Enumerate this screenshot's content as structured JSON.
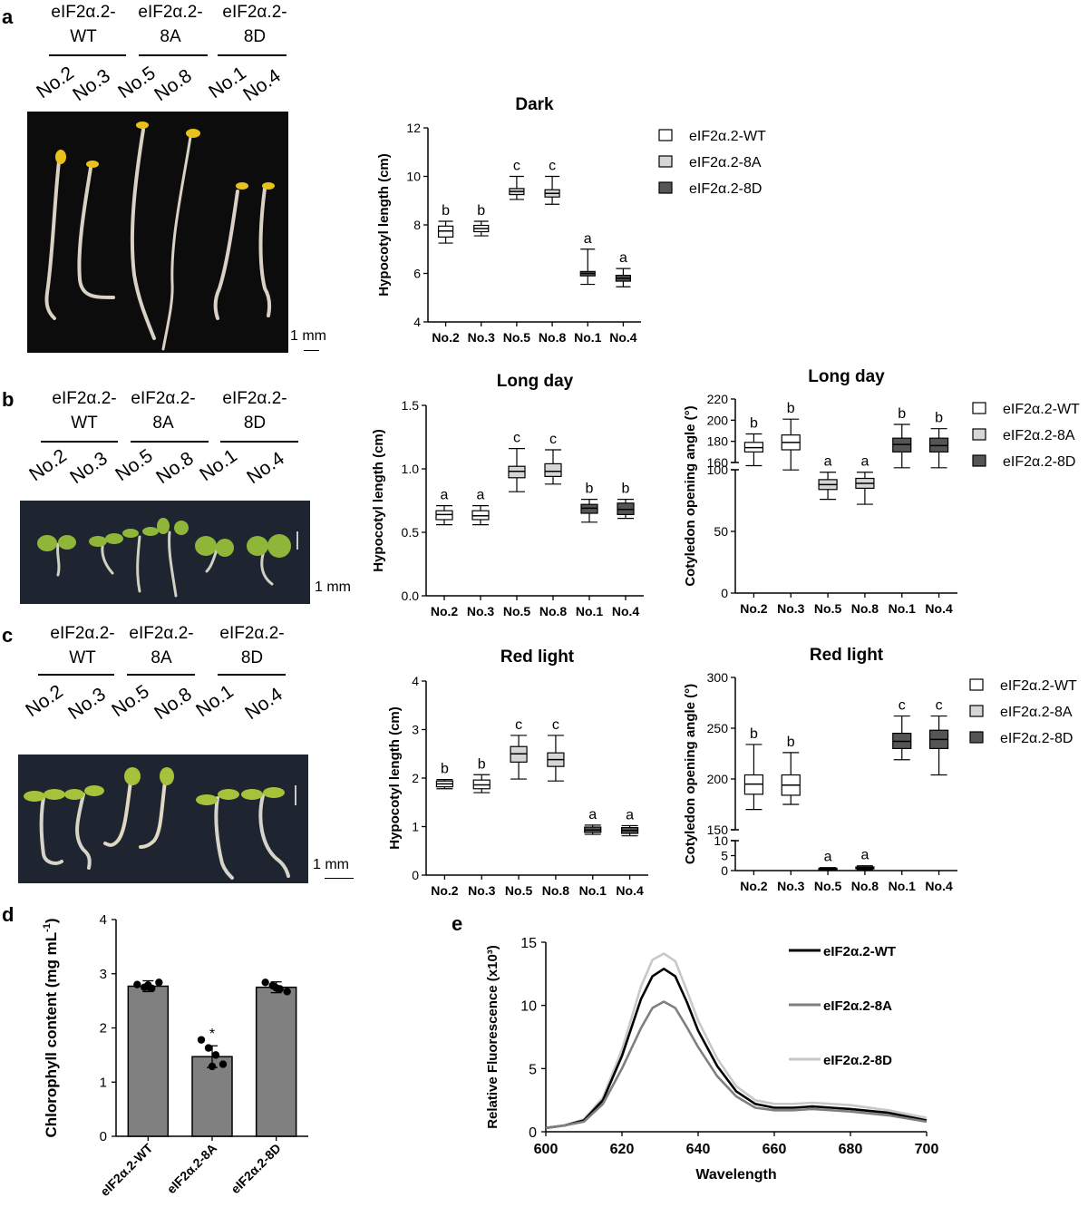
{
  "panels": {
    "a": {
      "letter": "a",
      "genotypes": [
        {
          "line1": "eIF2α.2-",
          "line2": "WT"
        },
        {
          "line1": "eIF2α.2-",
          "line2": "8A"
        },
        {
          "line1": "eIF2α.2-",
          "line2": "8D"
        }
      ],
      "lines": [
        "No.2",
        "No.3",
        "No.5",
        "No.8",
        "No.1",
        "No.4"
      ],
      "scale": "1 mm"
    },
    "b": {
      "letter": "b",
      "genotypes": [
        {
          "line1": "eIF2α.2-",
          "line2": "WT"
        },
        {
          "line1": "eIF2α.2-",
          "line2": "8A"
        },
        {
          "line1": "eIF2α.2-",
          "line2": "8D"
        }
      ],
      "lines": [
        "No.2",
        "No.3",
        "No.5",
        "No.8",
        "No.1",
        "No.4"
      ],
      "scale": "1 mm"
    },
    "c": {
      "letter": "c",
      "genotypes": [
        {
          "line1": "eIF2α.2-",
          "line2": "WT"
        },
        {
          "line1": "eIF2α.2-",
          "line2": "8A"
        },
        {
          "line1": "eIF2α.2-",
          "line2": "8D"
        }
      ],
      "lines": [
        "No.2",
        "No.3",
        "No.5",
        "No.8",
        "No.1",
        "No.4"
      ],
      "scale": "1 mm"
    },
    "d": {
      "letter": "d"
    },
    "e": {
      "letter": "e"
    }
  },
  "colors": {
    "wt": "#ffffff",
    "a8": "#d6d6d6",
    "d8": "#555555",
    "bar": "#808080",
    "line_wt": "#000000",
    "line_8a": "#7f7f7f",
    "line_8d": "#c8c8c8",
    "photo_bg": "#0c0c0c",
    "photo_bg2": "#1e2530"
  },
  "chart_data": [
    {
      "id": "a_dark",
      "type": "box",
      "title": "Dark",
      "ylabel": "Hypocotyl length (cm)",
      "ylim": [
        4,
        12
      ],
      "yticks": [
        4,
        6,
        8,
        10,
        12
      ],
      "categories": [
        "No.2",
        "No.3",
        "No.5",
        "No.8",
        "No.1",
        "No.4"
      ],
      "groups": [
        "wt",
        "wt",
        "8a",
        "8a",
        "8d",
        "8d"
      ],
      "legend": [
        "eIF2α.2-WT",
        "eIF2α.2-8A",
        "eIF2α.2-8D"
      ],
      "legend_position": "right",
      "boxes": [
        {
          "min": 7.25,
          "q1": 7.5,
          "median": 7.75,
          "q3": 7.95,
          "max": 8.15,
          "letter": "b"
        },
        {
          "min": 7.55,
          "q1": 7.72,
          "median": 7.85,
          "q3": 7.98,
          "max": 8.15,
          "letter": "b"
        },
        {
          "min": 9.05,
          "q1": 9.25,
          "median": 9.38,
          "q3": 9.5,
          "max": 10.0,
          "letter": "c"
        },
        {
          "min": 8.85,
          "q1": 9.15,
          "median": 9.3,
          "q3": 9.45,
          "max": 10.0,
          "letter": "c"
        },
        {
          "min": 5.55,
          "q1": 5.9,
          "median": 6.0,
          "q3": 6.08,
          "max": 7.0,
          "letter": "a"
        },
        {
          "min": 5.45,
          "q1": 5.68,
          "median": 5.8,
          "q3": 5.92,
          "max": 6.2,
          "letter": "a"
        }
      ]
    },
    {
      "id": "b_hyp",
      "type": "box",
      "title": "Long day",
      "ylabel": "Hypocotyl length (cm)",
      "ylim": [
        0,
        1.5
      ],
      "yticks": [
        0.0,
        0.5,
        1.0,
        1.5
      ],
      "ytick_labels": [
        "0.0",
        "0.5",
        "1.0",
        "1.5"
      ],
      "categories": [
        "No.2",
        "No.3",
        "No.5",
        "No.8",
        "No.1",
        "No.4"
      ],
      "groups": [
        "wt",
        "wt",
        "8a",
        "8a",
        "8d",
        "8d"
      ],
      "boxes": [
        {
          "min": 0.56,
          "q1": 0.6,
          "median": 0.64,
          "q3": 0.67,
          "max": 0.71,
          "letter": "a"
        },
        {
          "min": 0.56,
          "q1": 0.6,
          "median": 0.63,
          "q3": 0.67,
          "max": 0.71,
          "letter": "a"
        },
        {
          "min": 0.82,
          "q1": 0.93,
          "median": 0.98,
          "q3": 1.02,
          "max": 1.16,
          "letter": "c"
        },
        {
          "min": 0.88,
          "q1": 0.94,
          "median": 0.98,
          "q3": 1.04,
          "max": 1.15,
          "letter": "c"
        },
        {
          "min": 0.58,
          "q1": 0.65,
          "median": 0.69,
          "q3": 0.72,
          "max": 0.76,
          "letter": "b"
        },
        {
          "min": 0.61,
          "q1": 0.64,
          "median": 0.68,
          "q3": 0.73,
          "max": 0.76,
          "letter": "b"
        }
      ]
    },
    {
      "id": "b_coty",
      "type": "box",
      "title": "Long day",
      "ylabel": "Cotyledon opening angle (°)",
      "axis_break": true,
      "ylim_lower": [
        0,
        100
      ],
      "yticks_lower": [
        0,
        50,
        100
      ],
      "ylim_upper": [
        160,
        220
      ],
      "yticks_upper": [
        160,
        180,
        200,
        220
      ],
      "categories": [
        "No.2",
        "No.3",
        "No.5",
        "No.8",
        "No.1",
        "No.4"
      ],
      "groups": [
        "wt",
        "wt",
        "8a",
        "8a",
        "8d",
        "8d"
      ],
      "legend": [
        "eIF2α.2-WT",
        "eIF2α.2-8A",
        "eIF2α.2-8D"
      ],
      "legend_position": "right",
      "boxes": [
        {
          "min": 157,
          "q1": 170,
          "median": 174,
          "q3": 179,
          "max": 187,
          "letter": "b"
        },
        {
          "min": 153,
          "q1": 172,
          "median": 179,
          "q3": 186,
          "max": 201,
          "letter": "b"
        },
        {
          "min": 76,
          "q1": 84,
          "median": 88,
          "q3": 92,
          "max": 98,
          "letter": "a"
        },
        {
          "min": 72,
          "q1": 85,
          "median": 89,
          "q3": 93,
          "max": 98,
          "letter": "a"
        },
        {
          "min": 155,
          "q1": 170,
          "median": 177,
          "q3": 183,
          "max": 196,
          "letter": "b"
        },
        {
          "min": 155,
          "q1": 170,
          "median": 176,
          "q3": 183,
          "max": 192,
          "letter": "b"
        }
      ]
    },
    {
      "id": "c_hyp",
      "type": "box",
      "title": "Red light",
      "ylabel": "Hypocotyl length (cm)",
      "ylim": [
        0,
        4
      ],
      "yticks": [
        0,
        1,
        2,
        3,
        4
      ],
      "categories": [
        "No.2",
        "No.3",
        "No.5",
        "No.8",
        "No.1",
        "No.4"
      ],
      "groups": [
        "wt",
        "wt",
        "8a",
        "8a",
        "8d",
        "8d"
      ],
      "boxes": [
        {
          "min": 1.78,
          "q1": 1.82,
          "median": 1.88,
          "q3": 1.94,
          "max": 1.97,
          "letter": "b"
        },
        {
          "min": 1.7,
          "q1": 1.78,
          "median": 1.86,
          "q3": 1.96,
          "max": 2.07,
          "letter": "b"
        },
        {
          "min": 1.98,
          "q1": 2.33,
          "median": 2.5,
          "q3": 2.65,
          "max": 2.88,
          "letter": "c"
        },
        {
          "min": 1.94,
          "q1": 2.24,
          "median": 2.38,
          "q3": 2.52,
          "max": 2.88,
          "letter": "c"
        },
        {
          "min": 0.84,
          "q1": 0.88,
          "median": 0.93,
          "q3": 0.99,
          "max": 1.03,
          "letter": "a"
        },
        {
          "min": 0.81,
          "q1": 0.86,
          "median": 0.92,
          "q3": 0.98,
          "max": 1.02,
          "letter": "a"
        }
      ]
    },
    {
      "id": "c_coty",
      "type": "box",
      "title": "Red light",
      "ylabel": "Cotyledon opening angle (°)",
      "axis_break": true,
      "ylim_lower": [
        0,
        10
      ],
      "yticks_lower": [
        0,
        5,
        10
      ],
      "ylim_upper": [
        150,
        300
      ],
      "yticks_upper": [
        150,
        200,
        250,
        300
      ],
      "categories": [
        "No.2",
        "No.3",
        "No.5",
        "No.8",
        "No.1",
        "No.4"
      ],
      "groups": [
        "wt",
        "wt",
        "8a",
        "8a",
        "8d",
        "8d"
      ],
      "legend": [
        "eIF2α.2-WT",
        "eIF2α.2-8A",
        "eIF2α.2-8D"
      ],
      "legend_position": "right",
      "boxes": [
        {
          "min": 170,
          "q1": 185,
          "median": 195,
          "q3": 204,
          "max": 234,
          "letter": "b"
        },
        {
          "min": 175,
          "q1": 184,
          "median": 194,
          "q3": 204,
          "max": 226,
          "letter": "b"
        },
        {
          "min": 0.2,
          "q1": 0.4,
          "median": 0.6,
          "q3": 0.8,
          "max": 1.0,
          "letter": "a"
        },
        {
          "min": 0.3,
          "q1": 0.6,
          "median": 0.9,
          "q3": 1.2,
          "max": 1.6,
          "letter": "a"
        },
        {
          "min": 219,
          "q1": 230,
          "median": 237,
          "q3": 245,
          "max": 262,
          "letter": "c"
        },
        {
          "min": 204,
          "q1": 230,
          "median": 239,
          "q3": 248,
          "max": 262,
          "letter": "c"
        }
      ]
    },
    {
      "id": "d_chl",
      "type": "bar",
      "ylabel_main": "Chlorophyll content (mg mL",
      "ylabel_sup": "-1",
      "ylabel_close": ")",
      "ylim": [
        0,
        4
      ],
      "yticks": [
        0,
        1,
        2,
        3,
        4
      ],
      "categories": [
        "eIF2α.2-WT",
        "eIF2α.2-8A",
        "eIF2α.2-8D"
      ],
      "values": [
        2.77,
        1.47,
        2.75
      ],
      "errors": [
        0.1,
        0.2,
        0.1
      ],
      "annotations": [
        "",
        "*",
        ""
      ],
      "points": [
        [
          2.8,
          2.75,
          2.73,
          2.84,
          2.79
        ],
        [
          1.78,
          1.63,
          1.5,
          1.33,
          1.29
        ],
        [
          2.84,
          2.78,
          2.72,
          2.67,
          2.74
        ]
      ]
    },
    {
      "id": "e_fluor",
      "type": "line",
      "xlabel": "Wavelength",
      "ylabel": "Relative Fluorescence (x10³)",
      "xlim": [
        600,
        700
      ],
      "xticks": [
        600,
        620,
        640,
        660,
        680,
        700
      ],
      "ylim": [
        0,
        15
      ],
      "yticks": [
        0,
        5,
        10,
        15
      ],
      "legend_position": "right",
      "x": [
        600,
        605,
        610,
        615,
        620,
        625,
        628,
        631,
        634,
        637,
        640,
        645,
        650,
        655,
        660,
        665,
        670,
        675,
        680,
        690,
        700
      ],
      "series": [
        {
          "name": "eIF2α.2-WT",
          "key": "line_wt",
          "values": [
            0.3,
            0.5,
            0.9,
            2.5,
            6.0,
            10.5,
            12.3,
            12.9,
            12.3,
            10.3,
            8.0,
            5.2,
            3.2,
            2.2,
            1.9,
            1.9,
            2.0,
            1.9,
            1.8,
            1.5,
            0.9
          ]
        },
        {
          "name": "eIF2α.2-8A",
          "key": "line_8a",
          "values": [
            0.3,
            0.5,
            0.8,
            2.2,
            5.0,
            8.2,
            9.8,
            10.3,
            9.8,
            8.3,
            6.7,
            4.4,
            2.8,
            1.9,
            1.7,
            1.7,
            1.8,
            1.7,
            1.6,
            1.3,
            0.8
          ]
        },
        {
          "name": "eIF2α.2-8D",
          "key": "line_8d",
          "values": [
            0.3,
            0.5,
            1.0,
            2.7,
            6.5,
            11.5,
            13.6,
            14.1,
            13.5,
            11.2,
            8.8,
            5.8,
            3.6,
            2.5,
            2.2,
            2.2,
            2.3,
            2.2,
            2.1,
            1.7,
            1.1
          ]
        }
      ]
    }
  ]
}
